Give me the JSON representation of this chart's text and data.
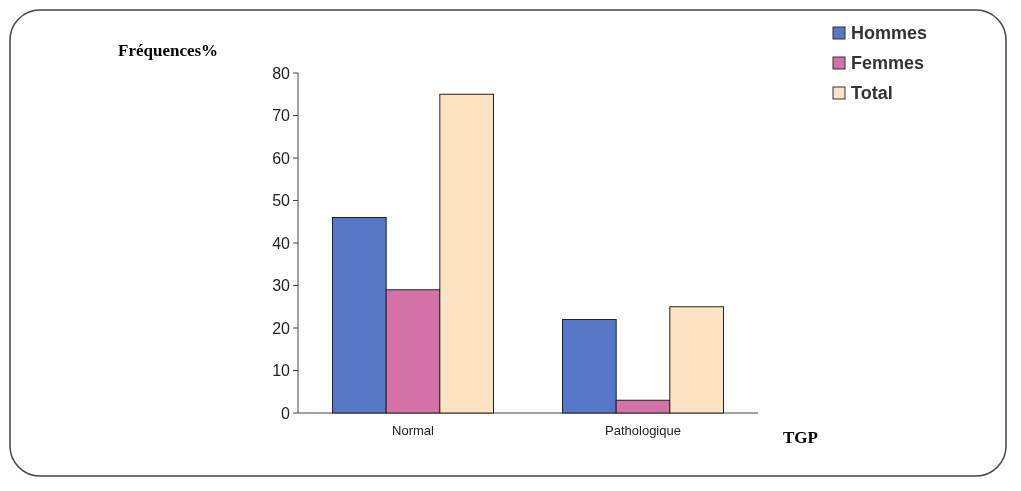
{
  "chart_data": {
    "type": "bar",
    "ylabel": "Fréquences%",
    "xlabel": "TGP",
    "categories": [
      "Normal",
      "Pathologique"
    ],
    "series": [
      {
        "name": "Hommes",
        "color": "#5577c8",
        "values": [
          46,
          22
        ]
      },
      {
        "name": "Femmes",
        "color": "#d472a8",
        "values": [
          29,
          3
        ]
      },
      {
        "name": "Total",
        "color": "#fde3c4",
        "values": [
          75,
          25
        ]
      }
    ],
    "ylim": [
      0,
      80
    ],
    "yticks": [
      0,
      10,
      20,
      30,
      40,
      50,
      60,
      70,
      80
    ],
    "legend": "top right"
  }
}
